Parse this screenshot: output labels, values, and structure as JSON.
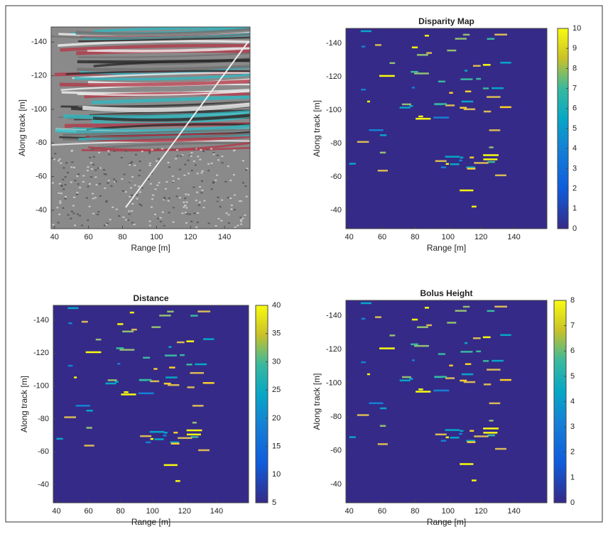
{
  "chart_data": [
    {
      "type": "image",
      "xlabel": "Range [m]",
      "ylabel": "Along track [m]",
      "xlim": [
        38,
        155
      ],
      "ylim": [
        -149,
        -29
      ],
      "y_reversed": true,
      "xticks": [
        40,
        60,
        80,
        100,
        120,
        140
      ],
      "yticks": [
        -140,
        -120,
        -100,
        -80,
        -60,
        -40
      ]
    },
    {
      "type": "heatmap",
      "title": "Disparity Map",
      "xlabel": "Range [m]",
      "ylabel": "Along track [m]",
      "xlim": [
        38,
        160
      ],
      "ylim": [
        -149,
        -29
      ],
      "y_reversed": true,
      "xticks": [
        40,
        60,
        80,
        100,
        120,
        140
      ],
      "yticks": [
        -140,
        -120,
        -100,
        -80,
        -60,
        -40
      ],
      "colormap": "parula",
      "clim": [
        0,
        10
      ],
      "cticks": [
        0,
        1,
        2,
        3,
        4,
        5,
        6,
        7,
        8,
        9,
        10
      ]
    },
    {
      "type": "heatmap",
      "title": "Distance",
      "xlabel": "Range [m]",
      "ylabel": "Along track [m]",
      "xlim": [
        38,
        160
      ],
      "ylim": [
        -149,
        -29
      ],
      "y_reversed": true,
      "xticks": [
        40,
        60,
        80,
        100,
        120,
        140
      ],
      "yticks": [
        -140,
        -120,
        -100,
        -80,
        -60,
        -40
      ],
      "colormap": "parula",
      "clim": [
        5,
        40
      ],
      "cticks": [
        5,
        10,
        15,
        20,
        25,
        30,
        35,
        40
      ]
    },
    {
      "type": "heatmap",
      "title": "Bolus Height",
      "xlabel": "Range [m]",
      "ylabel": "Along track [m]",
      "xlim": [
        38,
        160
      ],
      "ylim": [
        -149,
        -29
      ],
      "y_reversed": true,
      "xticks": [
        40,
        60,
        80,
        100,
        120,
        140
      ],
      "yticks": [
        -140,
        -120,
        -100,
        -80,
        -60,
        -40
      ],
      "colormap": "parula",
      "clim": [
        0,
        8
      ],
      "cticks": [
        0,
        1,
        2,
        3,
        4,
        5,
        6,
        7,
        8
      ]
    }
  ]
}
